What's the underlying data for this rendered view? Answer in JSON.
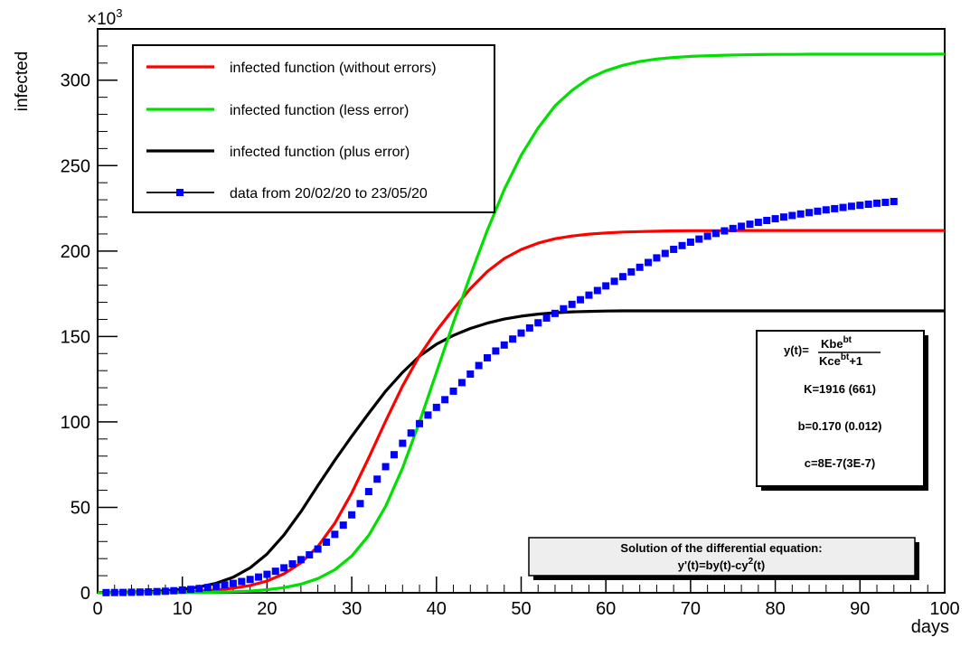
{
  "chart_data": {
    "type": "line",
    "ylabel": "infected",
    "xlabel": "days",
    "y_multiplier": "×10",
    "y_multiplier_exp": "3",
    "xlim": [
      0,
      100
    ],
    "ylim": [
      0,
      330
    ],
    "x_ticks": [
      "0",
      "10",
      "20",
      "30",
      "40",
      "50",
      "60",
      "70",
      "80",
      "90",
      "100"
    ],
    "y_ticks": [
      "0",
      "50",
      "100",
      "150",
      "200",
      "250",
      "300"
    ],
    "grid": false,
    "legend_position": "top-left",
    "series": [
      {
        "name": "infected function (without errors)",
        "color": "#ff0000",
        "style": "line",
        "x": [
          0,
          2,
          4,
          6,
          8,
          10,
          12,
          14,
          16,
          18,
          20,
          22,
          24,
          26,
          28,
          30,
          32,
          34,
          36,
          38,
          40,
          42,
          44,
          46,
          48,
          50,
          52,
          54,
          56,
          58,
          60,
          62,
          64,
          66,
          68,
          70,
          72,
          74,
          76,
          78,
          80,
          82,
          84,
          86,
          88,
          90,
          92,
          94,
          96,
          98,
          100
        ],
        "y": [
          0.06,
          0.09,
          0.14,
          0.23,
          0.38,
          0.62,
          1.0,
          1.6,
          2.7,
          4.3,
          6.9,
          11.1,
          17.5,
          27.1,
          40.7,
          58.4,
          78.9,
          100.5,
          121.0,
          138.8,
          153.3,
          166.0,
          178.0,
          188.0,
          195.6,
          200.9,
          204.6,
          207.2,
          208.8,
          209.9,
          210.6,
          211.1,
          211.4,
          211.6,
          211.8,
          211.9,
          211.9,
          211.9,
          212.0,
          212.0,
          212.0,
          212.0,
          212.0,
          212.0,
          212.0,
          212.0,
          212.0,
          212.0,
          212.0,
          212.0,
          212.0
        ]
      },
      {
        "name": "infected function (less error)",
        "color": "#00e000",
        "style": "line",
        "x": [
          0,
          2,
          4,
          6,
          8,
          10,
          12,
          14,
          16,
          18,
          20,
          22,
          24,
          26,
          28,
          30,
          32,
          34,
          36,
          38,
          40,
          42,
          44,
          46,
          48,
          50,
          52,
          54,
          56,
          58,
          60,
          62,
          64,
          66,
          68,
          70,
          72,
          74,
          76,
          78,
          80,
          82,
          84,
          86,
          88,
          90,
          92,
          94,
          96,
          98,
          100
        ],
        "y": [
          0.01,
          0.02,
          0.03,
          0.05,
          0.08,
          0.13,
          0.22,
          0.37,
          0.62,
          1.0,
          1.8,
          3.0,
          5.0,
          8.3,
          13.5,
          21.5,
          33.5,
          50.6,
          73.0,
          100.0,
          129.0,
          158.0,
          185.7,
          212.0,
          236.0,
          256.0,
          272.0,
          285.0,
          294.0,
          301.0,
          305.5,
          308.7,
          310.9,
          312.4,
          313.3,
          313.9,
          314.3,
          314.6,
          314.8,
          315.0,
          315.1,
          315.1,
          315.2,
          315.2,
          315.2,
          315.2,
          315.2,
          315.2,
          315.2,
          315.2,
          315.3
        ]
      },
      {
        "name": "infected function (plus error)",
        "color": "#000000",
        "style": "line",
        "x": [
          0,
          2,
          4,
          6,
          8,
          10,
          12,
          14,
          16,
          18,
          20,
          22,
          24,
          26,
          28,
          30,
          32,
          34,
          36,
          38,
          40,
          42,
          44,
          46,
          48,
          50,
          52,
          54,
          56,
          58,
          60,
          62,
          64,
          66,
          68,
          70,
          72,
          74,
          76,
          78,
          80,
          82,
          84,
          86,
          88,
          90,
          92,
          94,
          96,
          98,
          100
        ],
        "y": [
          0.15,
          0.25,
          0.4,
          0.7,
          1.2,
          2.0,
          3.4,
          5.6,
          9.1,
          14.6,
          22.7,
          33.8,
          47.5,
          62.7,
          77.6,
          91.6,
          105.0,
          118.0,
          129.0,
          138.5,
          145.5,
          150.6,
          154.7,
          157.8,
          160.2,
          161.9,
          163.1,
          163.9,
          164.4,
          164.7,
          164.9,
          165.0,
          165.0,
          165.0,
          165.0,
          165.0,
          165.0,
          165.0,
          165.0,
          165.0,
          165.0,
          165.0,
          165.0,
          165.0,
          165.0,
          165.0,
          165.0,
          165.0,
          165.0,
          165.0,
          165.0
        ]
      },
      {
        "name": "data from 20/02/20 to 23/05/20",
        "color": "#0000ff",
        "style": "markers",
        "x": [
          1,
          2,
          3,
          4,
          5,
          6,
          7,
          8,
          9,
          10,
          11,
          12,
          13,
          14,
          15,
          16,
          17,
          18,
          19,
          20,
          21,
          22,
          23,
          24,
          25,
          26,
          27,
          28,
          29,
          30,
          31,
          32,
          33,
          34,
          35,
          36,
          37,
          38,
          39,
          40,
          41,
          42,
          43,
          44,
          45,
          46,
          47,
          48,
          49,
          50,
          51,
          52,
          53,
          54,
          55,
          56,
          57,
          58,
          59,
          60,
          61,
          62,
          63,
          64,
          65,
          66,
          67,
          68,
          69,
          70,
          71,
          72,
          73,
          74,
          75,
          76,
          77,
          78,
          79,
          80,
          81,
          82,
          83,
          84,
          85,
          86,
          87,
          88,
          89,
          90,
          91,
          92,
          93,
          94
        ],
        "y": [
          0.1,
          0.15,
          0.2,
          0.3,
          0.4,
          0.5,
          0.7,
          0.9,
          1.2,
          1.6,
          2.0,
          2.5,
          3.1,
          3.8,
          4.6,
          5.5,
          6.6,
          7.8,
          9.2,
          10.8,
          12.6,
          14.6,
          16.9,
          19.4,
          22.2,
          25.6,
          29.6,
          34.2,
          39.6,
          45.6,
          52.2,
          59.2,
          66.5,
          73.8,
          80.8,
          87.5,
          93.5,
          99.0,
          104.0,
          108.5,
          113.0,
          118.0,
          123.0,
          128.0,
          133.0,
          137.5,
          141.5,
          145.0,
          148.5,
          152.0,
          155.0,
          158.0,
          160.8,
          163.5,
          166.2,
          168.8,
          171.5,
          174.2,
          176.9,
          179.6,
          182.3,
          185.0,
          187.8,
          190.5,
          193.3,
          196.0,
          198.6,
          201.0,
          203.2,
          205.2,
          207.0,
          208.7,
          210.3,
          211.8,
          213.2,
          214.5,
          215.7,
          216.8,
          217.9,
          218.9,
          219.9,
          220.8,
          221.7,
          222.5,
          223.3,
          224.1,
          224.8,
          225.5,
          226.2,
          226.8,
          227.4,
          228.0,
          228.5,
          229.0
        ]
      }
    ]
  },
  "fit_box": {
    "eq_prefix": "y(t)=",
    "numerator": "Kbe",
    "num_exp": "bt",
    "denominator": "Kce",
    "den_exp": "bt",
    "den_suffix": "+1",
    "k_line": "K=1916 (661)",
    "b_line": "b=0.170 (0.012)",
    "c_line": "c=8E-7(3E-7)"
  },
  "solution_box": {
    "title": "Solution of the differential equation:",
    "eq_part1": "y'(t)=by(t)-cy",
    "eq_exp": "2",
    "eq_part2": "(t)"
  }
}
